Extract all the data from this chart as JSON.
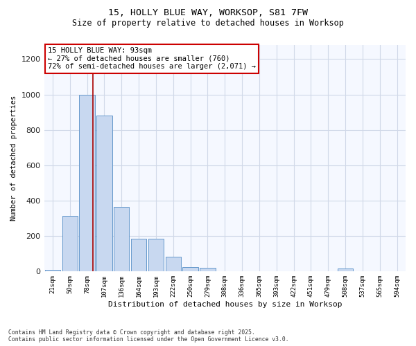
{
  "title_line1": "15, HOLLY BLUE WAY, WORKSOP, S81 7FW",
  "title_line2": "Size of property relative to detached houses in Worksop",
  "xlabel": "Distribution of detached houses by size in Worksop",
  "ylabel": "Number of detached properties",
  "categories": [
    "21sqm",
    "50sqm",
    "78sqm",
    "107sqm",
    "136sqm",
    "164sqm",
    "193sqm",
    "222sqm",
    "250sqm",
    "279sqm",
    "308sqm",
    "336sqm",
    "365sqm",
    "393sqm",
    "422sqm",
    "451sqm",
    "479sqm",
    "508sqm",
    "537sqm",
    "565sqm",
    "594sqm"
  ],
  "values": [
    10,
    315,
    1000,
    880,
    365,
    185,
    185,
    85,
    25,
    20,
    3,
    1,
    0,
    0,
    0,
    0,
    0,
    15,
    0,
    0,
    0
  ],
  "bar_color": "#c8d8f0",
  "bar_edge_color": "#6699cc",
  "vline_color": "#aa0000",
  "vline_x_index": 2.35,
  "annotation_text": "15 HOLLY BLUE WAY: 93sqm\n← 27% of detached houses are smaller (760)\n72% of semi-detached houses are larger (2,071) →",
  "annotation_box_facecolor": "#ffffff",
  "annotation_box_edgecolor": "#cc0000",
  "ylim": [
    0,
    1280
  ],
  "yticks": [
    0,
    200,
    400,
    600,
    800,
    1000,
    1200
  ],
  "bg_color": "#ffffff",
  "plot_bg_color": "#f5f8ff",
  "grid_color": "#d0d8e8",
  "footer_line1": "Contains HM Land Registry data © Crown copyright and database right 2025.",
  "footer_line2": "Contains public sector information licensed under the Open Government Licence v3.0."
}
